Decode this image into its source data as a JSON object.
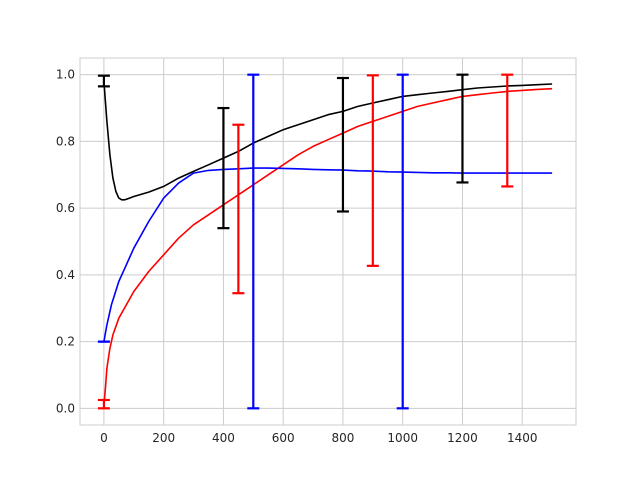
{
  "chart_data": {
    "type": "line",
    "title": "",
    "xlabel": "",
    "ylabel": "",
    "xlim": [
      -80,
      1580
    ],
    "ylim": [
      -0.05,
      1.05
    ],
    "grid": true,
    "x_ticks": [
      0,
      200,
      400,
      600,
      800,
      1000,
      1200,
      1400
    ],
    "y_ticks": [
      0.0,
      0.2,
      0.4,
      0.6,
      0.8,
      1.0
    ],
    "x_tick_labels": [
      "0",
      "200",
      "400",
      "600",
      "800",
      "1000",
      "1200",
      "1400"
    ],
    "y_tick_labels": [
      "0.0",
      "0.2",
      "0.4",
      "0.6",
      "0.8",
      "1.0"
    ],
    "series": [
      {
        "color": "#000000",
        "x": [
          0,
          10,
          20,
          30,
          40,
          50,
          60,
          70,
          80,
          100,
          150,
          200,
          250,
          300,
          350,
          400,
          450,
          500,
          550,
          600,
          650,
          700,
          750,
          800,
          850,
          900,
          950,
          1000,
          1050,
          1100,
          1150,
          1200,
          1250,
          1300,
          1350,
          1400,
          1450,
          1500
        ],
        "y": [
          0.98,
          0.86,
          0.76,
          0.69,
          0.65,
          0.63,
          0.625,
          0.625,
          0.628,
          0.635,
          0.648,
          0.665,
          0.69,
          0.71,
          0.73,
          0.75,
          0.77,
          0.795,
          0.815,
          0.835,
          0.85,
          0.865,
          0.88,
          0.89,
          0.905,
          0.915,
          0.925,
          0.935,
          0.94,
          0.945,
          0.95,
          0.955,
          0.96,
          0.963,
          0.966,
          0.968,
          0.97,
          0.972
        ],
        "errorbars": [
          {
            "x": 0,
            "low": 0.965,
            "high": 0.997
          },
          {
            "x": 400,
            "low": 0.54,
            "high": 0.9
          },
          {
            "x": 800,
            "low": 0.59,
            "high": 0.99
          },
          {
            "x": 1200,
            "low": 0.677,
            "high": 1.0
          }
        ]
      },
      {
        "color": "#ff0000",
        "x": [
          0,
          5,
          10,
          20,
          30,
          50,
          75,
          100,
          150,
          200,
          250,
          300,
          350,
          400,
          450,
          500,
          550,
          600,
          650,
          700,
          750,
          800,
          850,
          900,
          950,
          1000,
          1050,
          1100,
          1150,
          1200,
          1250,
          1300,
          1350,
          1400,
          1450,
          1500
        ],
        "y": [
          0.01,
          0.06,
          0.12,
          0.18,
          0.22,
          0.27,
          0.31,
          0.35,
          0.41,
          0.46,
          0.51,
          0.55,
          0.58,
          0.61,
          0.64,
          0.67,
          0.7,
          0.73,
          0.76,
          0.785,
          0.805,
          0.825,
          0.845,
          0.86,
          0.875,
          0.89,
          0.905,
          0.915,
          0.925,
          0.935,
          0.94,
          0.945,
          0.95,
          0.953,
          0.956,
          0.958
        ],
        "errorbars": [
          {
            "x": 0,
            "low": 0.0,
            "high": 0.025
          },
          {
            "x": 450,
            "low": 0.345,
            "high": 0.85
          },
          {
            "x": 900,
            "low": 0.427,
            "high": 0.998
          },
          {
            "x": 1350,
            "low": 0.665,
            "high": 1.0
          }
        ]
      },
      {
        "color": "#0000ff",
        "x": [
          0,
          10,
          25,
          50,
          75,
          100,
          150,
          200,
          250,
          300,
          350,
          400,
          450,
          500,
          550,
          600,
          650,
          700,
          750,
          800,
          850,
          900,
          950,
          1000,
          1050,
          1100,
          1150,
          1200,
          1250,
          1300,
          1350,
          1400,
          1450,
          1500
        ],
        "y": [
          0.2,
          0.25,
          0.31,
          0.38,
          0.43,
          0.48,
          0.56,
          0.63,
          0.675,
          0.705,
          0.713,
          0.716,
          0.718,
          0.72,
          0.72,
          0.719,
          0.718,
          0.716,
          0.715,
          0.714,
          0.712,
          0.711,
          0.709,
          0.708,
          0.707,
          0.706,
          0.706,
          0.705,
          0.705,
          0.705,
          0.705,
          0.705,
          0.705,
          0.705
        ],
        "errorbars": [
          {
            "x": 0,
            "low": 0.2,
            "high": 0.2
          },
          {
            "x": 500,
            "low": 0.0,
            "high": 1.0
          },
          {
            "x": 1000,
            "low": 0.0,
            "high": 1.0
          }
        ]
      }
    ]
  }
}
